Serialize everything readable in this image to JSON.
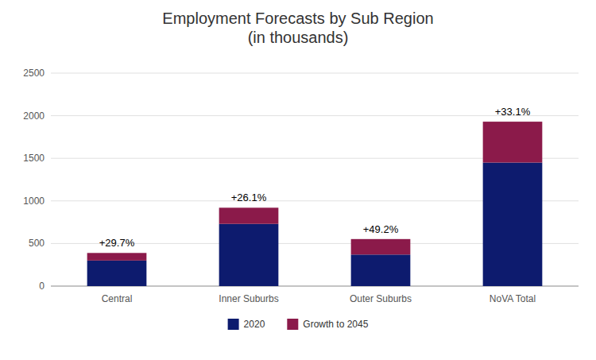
{
  "chart_data": {
    "type": "bar",
    "stacked": true,
    "title": "Employment Forecasts by Sub Region\n(in thousands)",
    "categories": [
      "Central",
      "Inner Suburbs",
      "Outer Suburbs",
      "NoVA Total"
    ],
    "series": [
      {
        "name": "2020",
        "color": "#0d1b6e",
        "values": [
          300,
          730,
          370,
          1450
        ]
      },
      {
        "name": "Growth to 2045",
        "color": "#8b1a4a",
        "values": [
          89,
          190,
          182,
          480
        ]
      }
    ],
    "annotations": [
      "+29.7%",
      "+26.1%",
      "+49.2%",
      "+33.1%"
    ],
    "ylim": [
      0,
      2500
    ],
    "yticks": [
      0,
      500,
      1000,
      1500,
      2000,
      2500
    ],
    "grid": true,
    "legend": "bottom"
  }
}
